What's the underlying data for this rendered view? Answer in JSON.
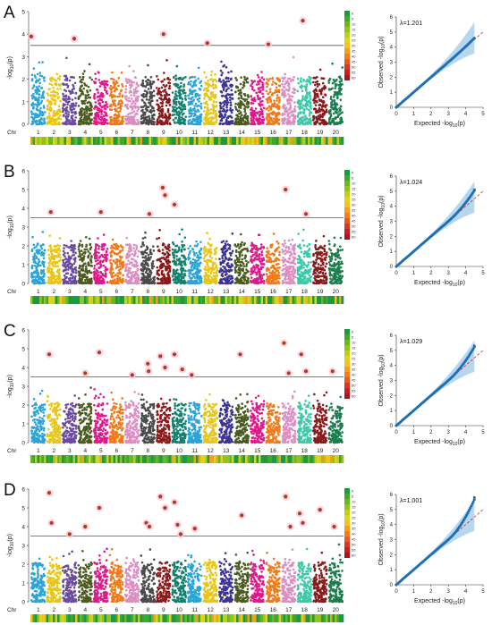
{
  "figure": {
    "panel_letters": [
      "A",
      "B",
      "C",
      "D"
    ],
    "chr_label": "Chr",
    "manhattan_ylabel": "-log10(p)",
    "qq_xlabel": "Expected -log10(p)",
    "qq_ylabel": "Observed -log10(p)"
  },
  "chart_data": [
    {
      "panel": "A",
      "type": "scatter",
      "subtype": "manhattan",
      "chromosomes": [
        "1",
        "2",
        "3",
        "4",
        "5",
        "6",
        "7",
        "8",
        "9",
        "10",
        "11",
        "12",
        "13",
        "14",
        "15",
        "16",
        "17",
        "18",
        "19",
        "20"
      ],
      "chromosome_colors": [
        "#2aa4d8",
        "#e8c619",
        "#6b4aa0",
        "#4b5b1f",
        "#e0198b",
        "#f07a1a",
        "#dc8ec2",
        "#4a4a4a",
        "#8b1a1a",
        "#12806e",
        "#2aa4d8",
        "#e8c619",
        "#3d3392",
        "#4b5b1f",
        "#e0198b",
        "#f07a1a",
        "#dc8ec2",
        "#3cc9a7",
        "#8b1a1a",
        "#1b7d4e"
      ],
      "ylabel": "-log10(p)",
      "ylim": [
        0,
        5
      ],
      "yticks": [
        0,
        1,
        2,
        3,
        4,
        5
      ],
      "threshold": 3.5,
      "significant_snps": [
        {
          "chr": 1,
          "pos": 0.05,
          "y": 3.9
        },
        {
          "chr": 3,
          "pos": 0.8,
          "y": 3.8
        },
        {
          "chr": 9,
          "pos": 0.5,
          "y": 4.0
        },
        {
          "chr": 12,
          "pos": 0.3,
          "y": 3.6
        },
        {
          "chr": 16,
          "pos": 0.2,
          "y": 3.55
        },
        {
          "chr": 18,
          "pos": 0.4,
          "y": 4.6
        }
      ],
      "density_legend": [
        "0",
        "5",
        "10",
        "15",
        "20",
        "25",
        "30",
        "35",
        "40",
        "45",
        "50",
        "55",
        "60"
      ],
      "qq": {
        "lambda_label": "λ=1.201",
        "xlim": [
          0,
          5
        ],
        "ylim": [
          0,
          6
        ],
        "xticks": [
          0,
          1,
          2,
          3,
          4,
          5
        ],
        "yticks": [
          0,
          1,
          2,
          3,
          4,
          5,
          6
        ],
        "max_expected": 4.5,
        "max_observed": 4.6
      }
    },
    {
      "panel": "B",
      "type": "scatter",
      "subtype": "manhattan",
      "chromosomes": [
        "1",
        "2",
        "3",
        "4",
        "5",
        "6",
        "7",
        "8",
        "9",
        "10",
        "11",
        "12",
        "13",
        "14",
        "15",
        "16",
        "17",
        "18",
        "19",
        "20"
      ],
      "chromosome_colors": [
        "#2aa4d8",
        "#e8c619",
        "#6b4aa0",
        "#4b5b1f",
        "#e0198b",
        "#f07a1a",
        "#dc8ec2",
        "#4a4a4a",
        "#8b1a1a",
        "#12806e",
        "#2aa4d8",
        "#e8c619",
        "#3d3392",
        "#4b5b1f",
        "#e0198b",
        "#f07a1a",
        "#dc8ec2",
        "#3cc9a7",
        "#8b1a1a",
        "#1b7d4e"
      ],
      "ylabel": "-log10(p)",
      "ylim": [
        0,
        6
      ],
      "yticks": [
        0,
        1,
        2,
        3,
        4,
        5,
        6
      ],
      "threshold": 3.5,
      "significant_snps": [
        {
          "chr": 2,
          "pos": 0.3,
          "y": 3.8
        },
        {
          "chr": 5,
          "pos": 0.5,
          "y": 3.8
        },
        {
          "chr": 8,
          "pos": 0.6,
          "y": 3.7
        },
        {
          "chr": 9,
          "pos": 0.45,
          "y": 5.1
        },
        {
          "chr": 9,
          "pos": 0.6,
          "y": 4.7
        },
        {
          "chr": 10,
          "pos": 0.2,
          "y": 4.2
        },
        {
          "chr": 17,
          "pos": 0.3,
          "y": 5.0
        },
        {
          "chr": 18,
          "pos": 0.6,
          "y": 3.7
        }
      ],
      "density_legend": [
        "0",
        "5",
        "10",
        "15",
        "20",
        "25",
        "30",
        "35",
        "40",
        "45",
        "50",
        "55",
        "60"
      ],
      "qq": {
        "lambda_label": "λ=1.024",
        "xlim": [
          0,
          5
        ],
        "ylim": [
          0,
          6
        ],
        "xticks": [
          0,
          1,
          2,
          3,
          4,
          5
        ],
        "yticks": [
          0,
          1,
          2,
          3,
          4,
          5,
          6
        ],
        "max_expected": 4.5,
        "max_observed": 5.1
      }
    },
    {
      "panel": "C",
      "type": "scatter",
      "subtype": "manhattan",
      "chromosomes": [
        "1",
        "2",
        "3",
        "4",
        "5",
        "6",
        "7",
        "8",
        "9",
        "10",
        "11",
        "12",
        "13",
        "14",
        "15",
        "16",
        "17",
        "18",
        "19",
        "20"
      ],
      "chromosome_colors": [
        "#2aa4d8",
        "#e8c619",
        "#6b4aa0",
        "#4b5b1f",
        "#e0198b",
        "#f07a1a",
        "#dc8ec2",
        "#4a4a4a",
        "#8b1a1a",
        "#12806e",
        "#2aa4d8",
        "#e8c619",
        "#3d3392",
        "#4b5b1f",
        "#e0198b",
        "#f07a1a",
        "#dc8ec2",
        "#3cc9a7",
        "#8b1a1a",
        "#1b7d4e"
      ],
      "ylabel": "-log10(p)",
      "ylim": [
        0,
        6
      ],
      "yticks": [
        0,
        1,
        2,
        3,
        4,
        5,
        6
      ],
      "threshold": 3.5,
      "significant_snps": [
        {
          "chr": 2,
          "pos": 0.2,
          "y": 4.7
        },
        {
          "chr": 4,
          "pos": 0.5,
          "y": 3.7
        },
        {
          "chr": 5,
          "pos": 0.4,
          "y": 4.8
        },
        {
          "chr": 7,
          "pos": 0.5,
          "y": 3.6
        },
        {
          "chr": 8,
          "pos": 0.5,
          "y": 4.2
        },
        {
          "chr": 8,
          "pos": 0.55,
          "y": 3.8
        },
        {
          "chr": 9,
          "pos": 0.3,
          "y": 4.6
        },
        {
          "chr": 9,
          "pos": 0.6,
          "y": 4.0
        },
        {
          "chr": 10,
          "pos": 0.2,
          "y": 4.7
        },
        {
          "chr": 10,
          "pos": 0.7,
          "y": 3.9
        },
        {
          "chr": 11,
          "pos": 0.3,
          "y": 3.6
        },
        {
          "chr": 14,
          "pos": 0.4,
          "y": 4.7
        },
        {
          "chr": 17,
          "pos": 0.2,
          "y": 5.3
        },
        {
          "chr": 17,
          "pos": 0.5,
          "y": 3.7
        },
        {
          "chr": 18,
          "pos": 0.3,
          "y": 4.7
        },
        {
          "chr": 18,
          "pos": 0.6,
          "y": 3.8
        },
        {
          "chr": 20,
          "pos": 0.3,
          "y": 3.8
        }
      ],
      "density_legend": [
        "0",
        "5",
        "10",
        "15",
        "20",
        "25",
        "30",
        "35",
        "40",
        "45",
        "50",
        "55",
        "60"
      ],
      "qq": {
        "lambda_label": "λ=1.029",
        "xlim": [
          0,
          5
        ],
        "ylim": [
          0,
          6
        ],
        "xticks": [
          0,
          1,
          2,
          3,
          4,
          5
        ],
        "yticks": [
          0,
          1,
          2,
          3,
          4,
          5,
          6
        ],
        "max_expected": 4.5,
        "max_observed": 5.3
      }
    },
    {
      "panel": "D",
      "type": "scatter",
      "subtype": "manhattan",
      "chromosomes": [
        "1",
        "2",
        "3",
        "4",
        "5",
        "6",
        "7",
        "8",
        "9",
        "10",
        "11",
        "12",
        "13",
        "14",
        "15",
        "16",
        "17",
        "18",
        "19",
        "20"
      ],
      "chromosome_colors": [
        "#2aa4d8",
        "#e8c619",
        "#6b4aa0",
        "#4b5b1f",
        "#e0198b",
        "#f07a1a",
        "#dc8ec2",
        "#4a4a4a",
        "#8b1a1a",
        "#12806e",
        "#2aa4d8",
        "#e8c619",
        "#3d3392",
        "#4b5b1f",
        "#e0198b",
        "#f07a1a",
        "#dc8ec2",
        "#3cc9a7",
        "#8b1a1a",
        "#1b7d4e"
      ],
      "ylabel": "-log10(p)",
      "ylim": [
        0,
        6
      ],
      "yticks": [
        0,
        1,
        2,
        3,
        4,
        5,
        6
      ],
      "threshold": 3.5,
      "significant_snps": [
        {
          "chr": 2,
          "pos": 0.2,
          "y": 5.8
        },
        {
          "chr": 2,
          "pos": 0.35,
          "y": 4.2
        },
        {
          "chr": 3,
          "pos": 0.5,
          "y": 3.6
        },
        {
          "chr": 4,
          "pos": 0.5,
          "y": 4.0
        },
        {
          "chr": 5,
          "pos": 0.4,
          "y": 5.0
        },
        {
          "chr": 8,
          "pos": 0.4,
          "y": 4.2
        },
        {
          "chr": 8,
          "pos": 0.6,
          "y": 4.0
        },
        {
          "chr": 9,
          "pos": 0.3,
          "y": 5.6
        },
        {
          "chr": 9,
          "pos": 0.6,
          "y": 5.0
        },
        {
          "chr": 10,
          "pos": 0.2,
          "y": 5.3
        },
        {
          "chr": 10,
          "pos": 0.4,
          "y": 4.1
        },
        {
          "chr": 10,
          "pos": 0.6,
          "y": 3.6
        },
        {
          "chr": 11,
          "pos": 0.5,
          "y": 3.9
        },
        {
          "chr": 14,
          "pos": 0.5,
          "y": 4.6
        },
        {
          "chr": 17,
          "pos": 0.3,
          "y": 5.6
        },
        {
          "chr": 17,
          "pos": 0.6,
          "y": 4.0
        },
        {
          "chr": 18,
          "pos": 0.2,
          "y": 4.7
        },
        {
          "chr": 18,
          "pos": 0.4,
          "y": 4.2
        },
        {
          "chr": 19,
          "pos": 0.5,
          "y": 4.9
        },
        {
          "chr": 20,
          "pos": 0.4,
          "y": 4.0
        }
      ],
      "density_legend": [
        "0",
        "5",
        "10",
        "15",
        "20",
        "25",
        "30",
        "35",
        "40",
        "45",
        "50",
        "55",
        "60"
      ],
      "qq": {
        "lambda_label": "λ=1.001",
        "xlim": [
          0,
          5
        ],
        "ylim": [
          0,
          6
        ],
        "xticks": [
          0,
          1,
          2,
          3,
          4,
          5
        ],
        "yticks": [
          0,
          1,
          2,
          3,
          4,
          5,
          6
        ],
        "max_expected": 4.5,
        "max_observed": 5.8
      }
    }
  ]
}
